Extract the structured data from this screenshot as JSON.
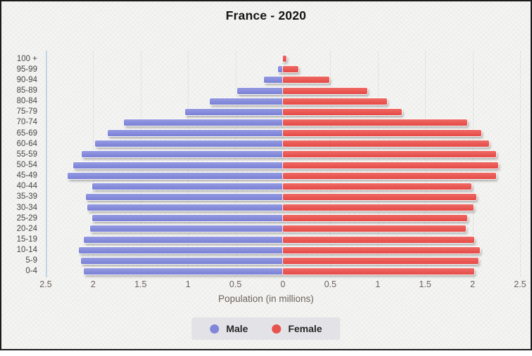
{
  "title": "France - 2020",
  "xlabel": "Population (in millions)",
  "legend": {
    "male_label": "Male",
    "female_label": "Female"
  },
  "colors": {
    "male": "#8187d8",
    "female": "#e8514e",
    "background": "#f1f1ef",
    "frame_border": "#1b1b1b",
    "axis_text": "#6b635b",
    "age_text": "#474747"
  },
  "chart_data": {
    "type": "bar",
    "subtype": "population-pyramid",
    "title": "France - 2020",
    "xlabel": "Population (in millions)",
    "ylabel": "",
    "grid": true,
    "legend_position": "bottom",
    "xlim": [
      -2.5,
      2.5
    ],
    "x_tick_values": [
      -2.5,
      -2,
      -1.5,
      -1,
      -0.5,
      0,
      0.5,
      1,
      1.5,
      2,
      2.5
    ],
    "x_tick_labels": [
      "2.5",
      "2",
      "1.5",
      "1",
      "0.5",
      "0",
      "0.5",
      "1",
      "1.5",
      "2",
      "2.5"
    ],
    "categories": [
      "100 +",
      "95-99",
      "90-94",
      "85-89",
      "80-84",
      "75-79",
      "70-74",
      "65-69",
      "60-64",
      "55-59",
      "50-54",
      "45-49",
      "40-44",
      "35-39",
      "30-34",
      "25-29",
      "20-24",
      "15-19",
      "10-14",
      "5-9",
      "0-4"
    ],
    "series": [
      {
        "name": "Male",
        "side": "left",
        "color": "#8187d8",
        "values": [
          0.01,
          0.05,
          0.2,
          0.48,
          0.77,
          1.03,
          1.68,
          1.85,
          1.98,
          2.12,
          2.21,
          2.27,
          2.01,
          2.08,
          2.06,
          2.01,
          2.03,
          2.1,
          2.15,
          2.13,
          2.1
        ]
      },
      {
        "name": "Female",
        "side": "right",
        "color": "#e8514e",
        "values": [
          0.04,
          0.16,
          0.49,
          0.89,
          1.1,
          1.25,
          1.94,
          2.09,
          2.17,
          2.25,
          2.27,
          2.25,
          1.99,
          2.04,
          2.01,
          1.94,
          1.93,
          2.02,
          2.08,
          2.06,
          2.02
        ]
      }
    ]
  }
}
